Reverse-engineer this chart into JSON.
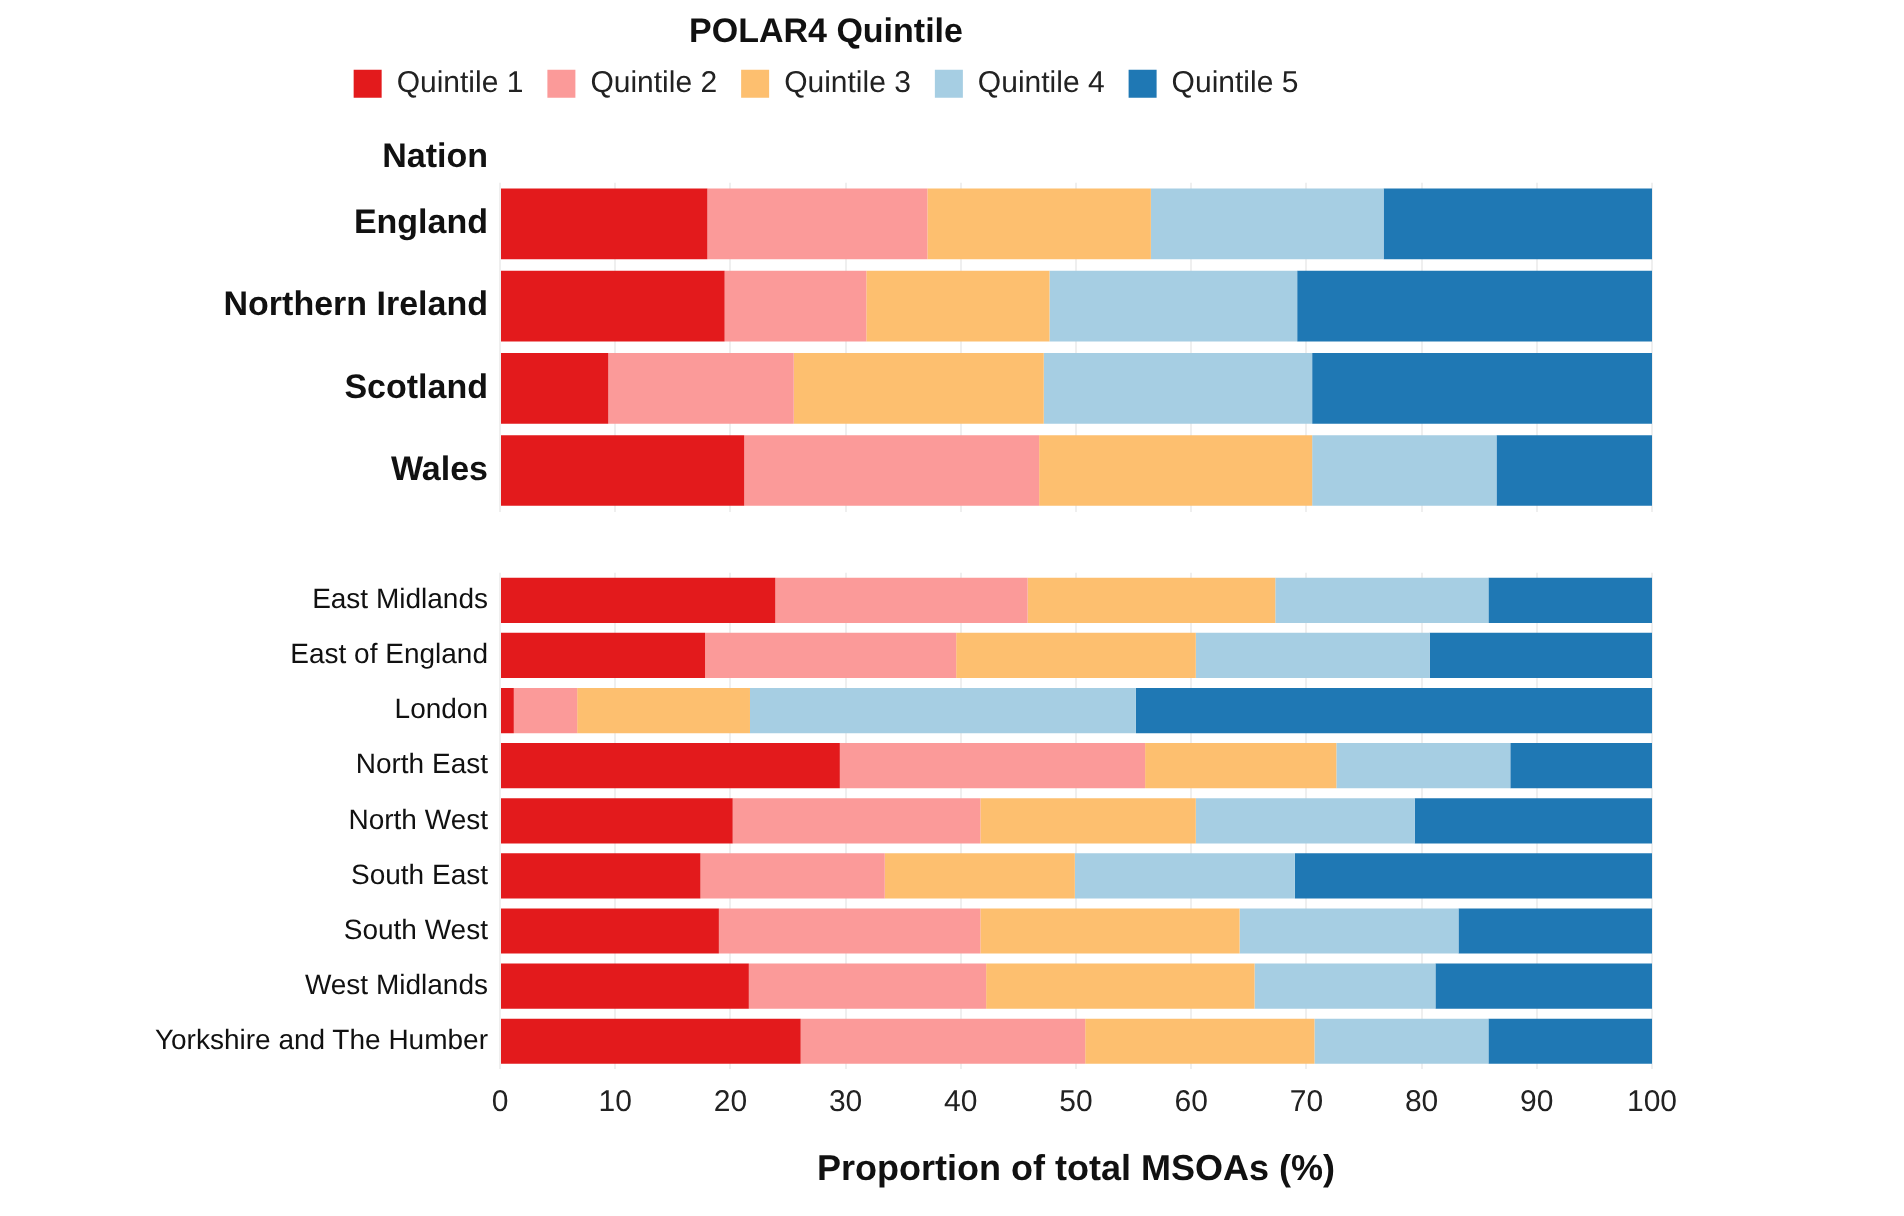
{
  "chart_data": [
    {
      "type": "bar",
      "orientation": "horizontal",
      "stacked": true,
      "legend": "top",
      "legend_title": "POLAR4 Quintile",
      "ylabel": "Nation",
      "tick_labels": "y",
      "grid": "x",
      "categories": [
        "England",
        "Northern Ireland",
        "Scotland",
        "Wales"
      ],
      "xlim": [
        0,
        100
      ],
      "xticks": [
        0,
        10,
        20,
        30,
        40,
        50,
        60,
        70,
        80,
        90,
        100
      ],
      "series": [
        {
          "name": "Quintile 1",
          "color": "#e31a1c",
          "values": [
            18.0,
            19.5,
            9.4,
            21.2
          ]
        },
        {
          "name": "Quintile 2",
          "color": "#fb9a99",
          "values": [
            19.1,
            12.3,
            16.1,
            25.6
          ]
        },
        {
          "name": "Quintile 3",
          "color": "#fdbf6f",
          "values": [
            19.4,
            15.9,
            21.7,
            23.7
          ]
        },
        {
          "name": "Quintile 4",
          "color": "#a6cee3",
          "values": [
            20.2,
            21.5,
            23.3,
            16.0
          ]
        },
        {
          "name": "Quintile 5",
          "color": "#1f78b4",
          "values": [
            23.3,
            30.8,
            29.5,
            13.5
          ]
        }
      ]
    },
    {
      "type": "bar",
      "orientation": "horizontal",
      "stacked": true,
      "xlabel": "Proportion of total MSOAs (%)",
      "grid": "x",
      "categories": [
        "East Midlands",
        "East of England",
        "London",
        "North East",
        "North West",
        "South East",
        "South West",
        "West Midlands",
        "Yorkshire and The Humber"
      ],
      "xlim": [
        0,
        100
      ],
      "xticks": [
        0,
        10,
        20,
        30,
        40,
        50,
        60,
        70,
        80,
        90,
        100
      ],
      "series": [
        {
          "color": "#e31a1c",
          "values": [
            23.9,
            17.8,
            1.2,
            29.5,
            20.2,
            17.4,
            19.0,
            21.6,
            26.1
          ]
        },
        {
          "color": "#fb9a99",
          "values": [
            21.9,
            21.8,
            5.5,
            26.5,
            21.5,
            16.0,
            22.7,
            20.6,
            24.7
          ]
        },
        {
          "color": "#fdbf6f",
          "values": [
            21.5,
            20.8,
            15.0,
            16.6,
            18.7,
            16.5,
            22.5,
            23.3,
            19.9
          ]
        },
        {
          "color": "#a6cee3",
          "values": [
            18.5,
            20.3,
            33.5,
            15.1,
            19.0,
            19.1,
            19.0,
            15.7,
            15.1
          ]
        },
        {
          "color": "#1f78b4",
          "values": [
            14.2,
            19.3,
            44.8,
            12.3,
            20.6,
            31.0,
            16.8,
            18.8,
            14.2
          ]
        }
      ]
    }
  ]
}
